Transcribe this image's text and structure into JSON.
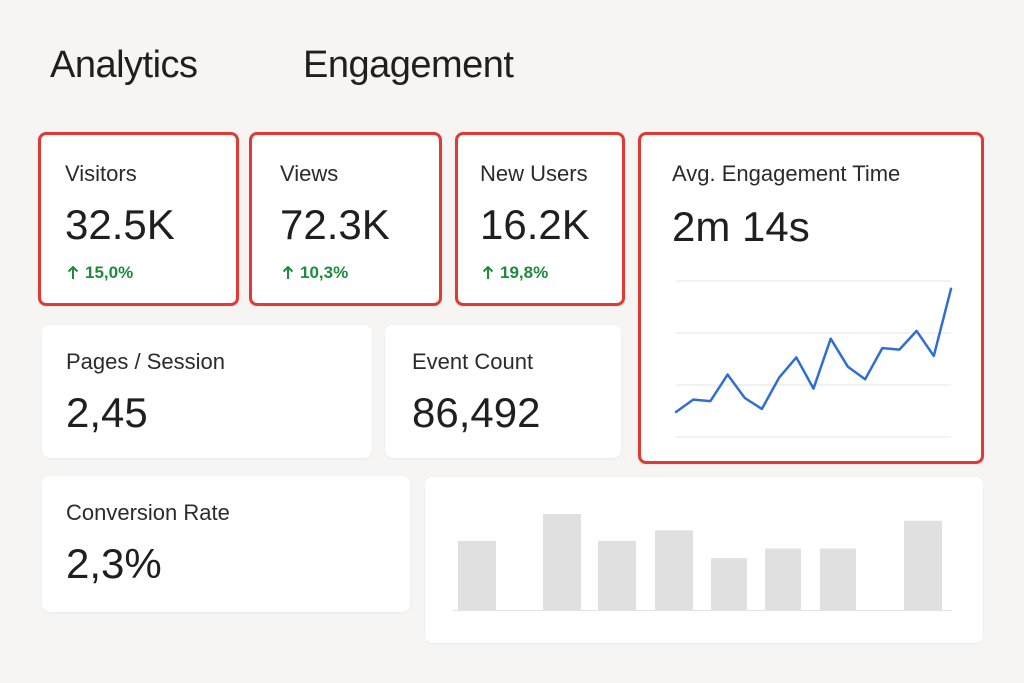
{
  "header": {
    "tabs": [
      {
        "label": "Analytics"
      },
      {
        "label": "Engagement"
      }
    ]
  },
  "metrics": {
    "visitors": {
      "label": "Visitors",
      "value": "32.5K",
      "delta": "15,0%"
    },
    "views": {
      "label": "Views",
      "value": "72.3K",
      "delta": "10,3%"
    },
    "new_users": {
      "label": "New Users",
      "value": "16.2K",
      "delta": "19,8%"
    },
    "avg_engagement": {
      "label": "Avg. Engagement Time",
      "value": "2m 14s"
    },
    "pages_session": {
      "label": "Pages / Session",
      "value": "2,45"
    },
    "event_count": {
      "label": "Event Count",
      "value": "86,492"
    },
    "conversion_rate": {
      "label": "Conversion Rate",
      "value": "2,3%"
    }
  },
  "colors": {
    "highlight_border": "#e03a35",
    "delta_positive": "#1e8a3d",
    "line_series": "#2f6fd1",
    "bar_fill": "#e0e0e0"
  },
  "icons": {
    "delta": "arrow-up-icon"
  },
  "chart_data": [
    {
      "type": "line",
      "title": "",
      "x": [
        1,
        2,
        3,
        4,
        5,
        6,
        7,
        8,
        9,
        10,
        11,
        12,
        13,
        14,
        15,
        16,
        17
      ],
      "series": [
        {
          "values": [
            16,
            24,
            23,
            40,
            25,
            18,
            38,
            51,
            31,
            63,
            45,
            37,
            57,
            56,
            68,
            52,
            95
          ]
        }
      ],
      "ylim": [
        0,
        100
      ],
      "grid": true
    },
    {
      "type": "bar",
      "title": "",
      "categories": [
        "1",
        "2",
        "3",
        "4",
        "5",
        "6",
        "7",
        "8"
      ],
      "values": [
        72,
        100,
        72,
        83,
        54,
        64,
        64,
        93
      ],
      "ylim": [
        0,
        100
      ],
      "grid": false
    }
  ]
}
